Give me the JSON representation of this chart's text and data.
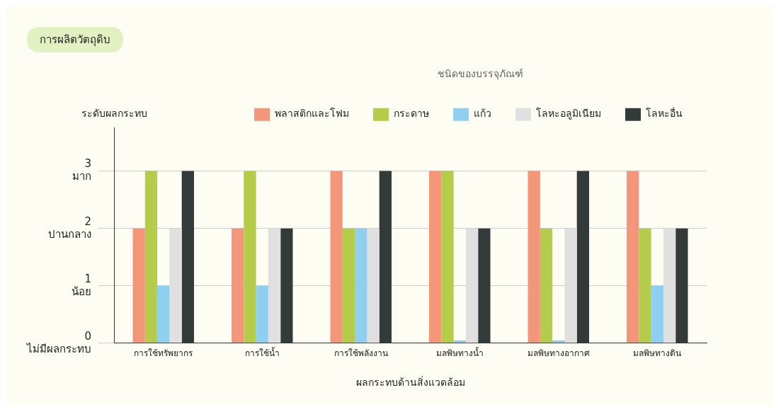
{
  "chart_data": {
    "type": "bar",
    "title": "การผลิตวัตถุดิบ",
    "ylabel": "ระดับผลกระทบ",
    "xlabel": "ผลกระทบด้านสิ่งแวดล้อม",
    "legend_title": "ชนิดของบรรจุภัณฑ์",
    "categories": [
      "การใช้ทรัพยากร",
      "การใช้น้ำ",
      "การใช้พลังงาน",
      "มลพิษทางน้ำ",
      "มลพิษทางอากาศ",
      "มลพิษทางดิน"
    ],
    "series": [
      {
        "name": "พลาสติกและโฟม",
        "color": "#f4967a",
        "values": [
          2,
          2,
          3,
          3,
          3,
          3
        ]
      },
      {
        "name": "กระดาษ",
        "color": "#b5cc4a",
        "values": [
          3,
          3,
          2,
          3,
          2,
          2
        ]
      },
      {
        "name": "แก้ว",
        "color": "#8fd0f0",
        "values": [
          1,
          1,
          2,
          0.05,
          0.05,
          1
        ]
      },
      {
        "name": "โลหะอลูมิเนียม",
        "color": "#e0e0e0",
        "values": [
          2,
          2,
          2,
          2,
          2,
          2
        ]
      },
      {
        "name": "โลหะอื่น",
        "color": "#333a3a",
        "values": [
          3,
          2,
          3,
          2,
          3,
          2
        ]
      }
    ],
    "ylim": [
      0,
      3.75
    ],
    "yticks": [
      {
        "value": 0,
        "label": "0 ไม่มีผลกระทบ"
      },
      {
        "value": 1,
        "label": "1 น้อย"
      },
      {
        "value": 2,
        "label": "2 ปานกลาง"
      },
      {
        "value": 3,
        "label": "3 มาก"
      }
    ],
    "grid": "y",
    "legend": "top right"
  }
}
